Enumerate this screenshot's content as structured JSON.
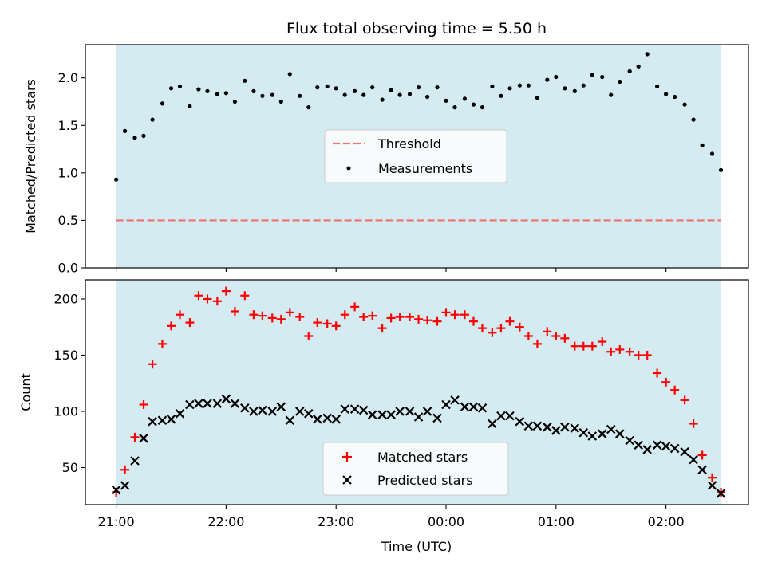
{
  "figure": {
    "title": "Flux total observing time = 5.50 h"
  },
  "chart_data": [
    {
      "type": "scatter",
      "panel": "top",
      "ylabel": "Matched/Predicted stars",
      "ylim": [
        0,
        2.35
      ],
      "yticks": [
        0.0,
        0.5,
        1.0,
        1.5,
        2.0
      ],
      "ytick_labels": [
        "0.0",
        "0.5",
        "1.0",
        "1.5",
        "2.0"
      ],
      "x_unit": "hours since 21:00 UTC",
      "xlim": [
        -0.28,
        5.75
      ],
      "observing_window": [
        0,
        5.5
      ],
      "legend": {
        "placement": "center",
        "entries": [
          "Threshold",
          "Measurements"
        ]
      },
      "threshold": {
        "name": "Threshold",
        "value": 0.5,
        "color": "#f07070"
      },
      "series": [
        {
          "name": "Measurements",
          "color": "#000000",
          "points": [
            [
              0.0,
              0.93
            ],
            [
              0.08,
              1.44
            ],
            [
              0.17,
              1.37
            ],
            [
              0.25,
              1.39
            ],
            [
              0.33,
              1.56
            ],
            [
              0.42,
              1.73
            ],
            [
              0.5,
              1.89
            ],
            [
              0.58,
              1.91
            ],
            [
              0.67,
              1.7
            ],
            [
              0.75,
              1.88
            ],
            [
              0.83,
              1.86
            ],
            [
              0.92,
              1.83
            ],
            [
              1.0,
              1.84
            ],
            [
              1.08,
              1.75
            ],
            [
              1.17,
              1.97
            ],
            [
              1.25,
              1.86
            ],
            [
              1.33,
              1.81
            ],
            [
              1.42,
              1.82
            ],
            [
              1.5,
              1.75
            ],
            [
              1.58,
              2.04
            ],
            [
              1.67,
              1.81
            ],
            [
              1.75,
              1.69
            ],
            [
              1.83,
              1.9
            ],
            [
              1.92,
              1.91
            ],
            [
              2.0,
              1.89
            ],
            [
              2.08,
              1.82
            ],
            [
              2.17,
              1.86
            ],
            [
              2.25,
              1.82
            ],
            [
              2.33,
              1.9
            ],
            [
              2.42,
              1.77
            ],
            [
              2.5,
              1.87
            ],
            [
              2.58,
              1.82
            ],
            [
              2.67,
              1.83
            ],
            [
              2.75,
              1.9
            ],
            [
              2.83,
              1.8
            ],
            [
              2.92,
              1.9
            ],
            [
              3.0,
              1.76
            ],
            [
              3.08,
              1.69
            ],
            [
              3.17,
              1.78
            ],
            [
              3.25,
              1.72
            ],
            [
              3.33,
              1.69
            ],
            [
              3.42,
              1.91
            ],
            [
              3.5,
              1.81
            ],
            [
              3.58,
              1.89
            ],
            [
              3.67,
              1.92
            ],
            [
              3.75,
              1.92
            ],
            [
              3.83,
              1.79
            ],
            [
              3.92,
              1.98
            ],
            [
              4.0,
              2.01
            ],
            [
              4.08,
              1.89
            ],
            [
              4.17,
              1.86
            ],
            [
              4.25,
              1.92
            ],
            [
              4.33,
              2.03
            ],
            [
              4.42,
              2.01
            ],
            [
              4.5,
              1.82
            ],
            [
              4.58,
              1.96
            ],
            [
              4.67,
              2.07
            ],
            [
              4.75,
              2.12
            ],
            [
              4.83,
              2.25
            ],
            [
              4.92,
              1.91
            ],
            [
              5.0,
              1.83
            ],
            [
              5.08,
              1.8
            ],
            [
              5.17,
              1.72
            ],
            [
              5.25,
              1.56
            ],
            [
              5.33,
              1.29
            ],
            [
              5.42,
              1.2
            ],
            [
              5.5,
              1.03
            ]
          ]
        }
      ]
    },
    {
      "type": "scatter",
      "panel": "bottom",
      "xlabel": "Time (UTC)",
      "ylabel": "Count",
      "ylim": [
        17,
        217
      ],
      "yticks": [
        50,
        100,
        150,
        200
      ],
      "ytick_labels": [
        "50",
        "100",
        "150",
        "200"
      ],
      "x_unit": "hours since 21:00 UTC",
      "xlim": [
        -0.28,
        5.75
      ],
      "xticks": [
        0,
        1,
        2,
        3,
        4,
        5
      ],
      "xtick_labels": [
        "21:00",
        "22:00",
        "23:00",
        "00:00",
        "01:00",
        "02:00"
      ],
      "observing_window": [
        0,
        5.5
      ],
      "legend": {
        "placement": "lower-center",
        "entries": [
          "Matched stars",
          "Predicted stars"
        ]
      },
      "series": [
        {
          "name": "Matched stars",
          "marker": "plus",
          "color": "#ff0000",
          "points": [
            [
              0.0,
              28
            ],
            [
              0.08,
              48
            ],
            [
              0.17,
              77
            ],
            [
              0.25,
              106
            ],
            [
              0.33,
              142
            ],
            [
              0.42,
              160
            ],
            [
              0.5,
              176
            ],
            [
              0.58,
              186
            ],
            [
              0.67,
              179
            ],
            [
              0.75,
              203
            ],
            [
              0.83,
              200
            ],
            [
              0.92,
              198
            ],
            [
              1.0,
              207
            ],
            [
              1.08,
              189
            ],
            [
              1.17,
              203
            ],
            [
              1.25,
              186
            ],
            [
              1.33,
              185
            ],
            [
              1.42,
              183
            ],
            [
              1.5,
              182
            ],
            [
              1.58,
              188
            ],
            [
              1.67,
              184
            ],
            [
              1.75,
              167
            ],
            [
              1.83,
              179
            ],
            [
              1.92,
              178
            ],
            [
              2.0,
              176
            ],
            [
              2.08,
              186
            ],
            [
              2.17,
              193
            ],
            [
              2.25,
              184
            ],
            [
              2.33,
              185
            ],
            [
              2.42,
              174
            ],
            [
              2.5,
              183
            ],
            [
              2.58,
              184
            ],
            [
              2.67,
              184
            ],
            [
              2.75,
              182
            ],
            [
              2.83,
              181
            ],
            [
              2.92,
              180
            ],
            [
              3.0,
              188
            ],
            [
              3.08,
              186
            ],
            [
              3.17,
              186
            ],
            [
              3.25,
              180
            ],
            [
              3.33,
              174
            ],
            [
              3.42,
              170
            ],
            [
              3.5,
              174
            ],
            [
              3.58,
              180
            ],
            [
              3.67,
              175
            ],
            [
              3.75,
              167
            ],
            [
              3.83,
              160
            ],
            [
              3.92,
              171
            ],
            [
              4.0,
              167
            ],
            [
              4.08,
              165
            ],
            [
              4.17,
              158
            ],
            [
              4.25,
              158
            ],
            [
              4.33,
              158
            ],
            [
              4.42,
              162
            ],
            [
              4.5,
              153
            ],
            [
              4.58,
              155
            ],
            [
              4.67,
              153
            ],
            [
              4.75,
              150
            ],
            [
              4.83,
              150
            ],
            [
              4.92,
              134
            ],
            [
              5.0,
              126
            ],
            [
              5.08,
              119
            ],
            [
              5.17,
              110
            ],
            [
              5.25,
              89
            ],
            [
              5.33,
              61
            ],
            [
              5.42,
              41
            ],
            [
              5.5,
              28
            ]
          ]
        },
        {
          "name": "Predicted stars",
          "marker": "x",
          "color": "#000000",
          "points": [
            [
              0.0,
              30
            ],
            [
              0.08,
              34
            ],
            [
              0.17,
              56
            ],
            [
              0.25,
              76
            ],
            [
              0.33,
              91
            ],
            [
              0.42,
              92
            ],
            [
              0.5,
              93
            ],
            [
              0.58,
              98
            ],
            [
              0.67,
              106
            ],
            [
              0.75,
              107
            ],
            [
              0.83,
              107
            ],
            [
              0.92,
              107
            ],
            [
              1.0,
              111
            ],
            [
              1.08,
              107
            ],
            [
              1.17,
              103
            ],
            [
              1.25,
              100
            ],
            [
              1.33,
              101
            ],
            [
              1.42,
              100
            ],
            [
              1.5,
              104
            ],
            [
              1.58,
              92
            ],
            [
              1.67,
              100
            ],
            [
              1.75,
              98
            ],
            [
              1.83,
              93
            ],
            [
              1.92,
              94
            ],
            [
              2.0,
              93
            ],
            [
              2.08,
              102
            ],
            [
              2.17,
              102
            ],
            [
              2.25,
              101
            ],
            [
              2.33,
              97
            ],
            [
              2.42,
              97
            ],
            [
              2.5,
              97
            ],
            [
              2.58,
              100
            ],
            [
              2.67,
              100
            ],
            [
              2.75,
              95
            ],
            [
              2.83,
              100
            ],
            [
              2.92,
              94
            ],
            [
              3.0,
              106
            ],
            [
              3.08,
              110
            ],
            [
              3.17,
              104
            ],
            [
              3.25,
              104
            ],
            [
              3.33,
              103
            ],
            [
              3.42,
              89
            ],
            [
              3.5,
              96
            ],
            [
              3.58,
              96
            ],
            [
              3.67,
              91
            ],
            [
              3.75,
              87
            ],
            [
              3.83,
              87
            ],
            [
              3.92,
              86
            ],
            [
              4.0,
              83
            ],
            [
              4.08,
              86
            ],
            [
              4.17,
              85
            ],
            [
              4.25,
              81
            ],
            [
              4.33,
              78
            ],
            [
              4.42,
              80
            ],
            [
              4.5,
              84
            ],
            [
              4.58,
              80
            ],
            [
              4.67,
              74
            ],
            [
              4.75,
              70
            ],
            [
              4.83,
              66
            ],
            [
              4.92,
              70
            ],
            [
              5.0,
              69
            ],
            [
              5.08,
              67
            ],
            [
              5.17,
              64
            ],
            [
              5.25,
              57
            ],
            [
              5.33,
              48
            ],
            [
              5.42,
              34
            ],
            [
              5.5,
              27
            ]
          ]
        }
      ]
    }
  ]
}
